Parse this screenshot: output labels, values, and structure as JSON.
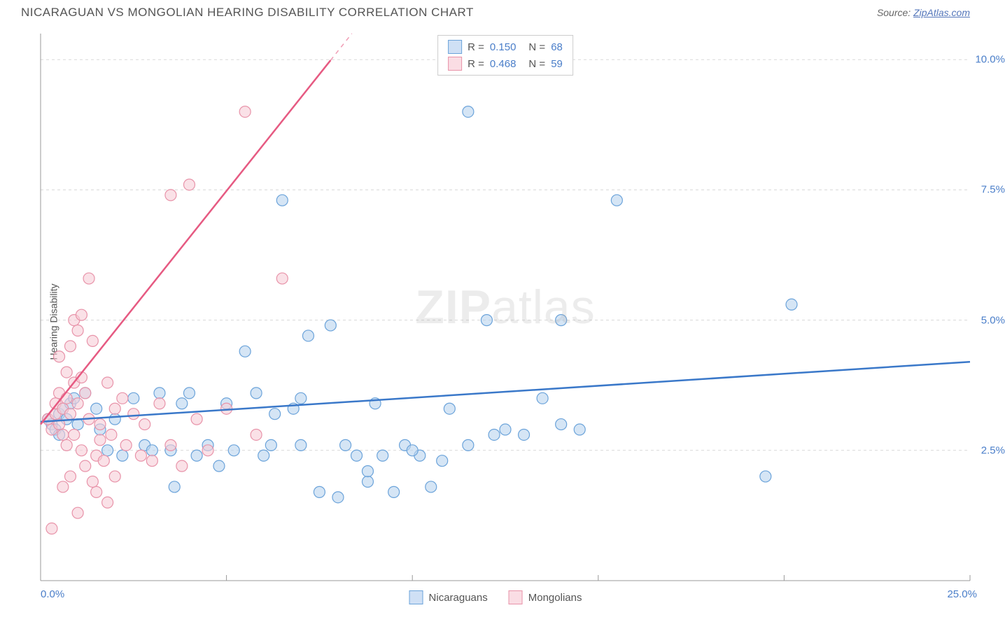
{
  "header": {
    "title": "NICARAGUAN VS MONGOLIAN HEARING DISABILITY CORRELATION CHART",
    "source_prefix": "Source: ",
    "source_link": "ZipAtlas.com"
  },
  "ylabel": "Hearing Disability",
  "watermark_zip": "ZIP",
  "watermark_atlas": "atlas",
  "chart": {
    "type": "scatter",
    "xlim": [
      0,
      25
    ],
    "ylim": [
      0,
      10.5
    ],
    "x_axis_left_label": "0.0%",
    "x_axis_right_label": "25.0%",
    "y_ticks": [
      {
        "v": 2.5,
        "label": "2.5%"
      },
      {
        "v": 5.0,
        "label": "5.0%"
      },
      {
        "v": 7.5,
        "label": "7.5%"
      },
      {
        "v": 10.0,
        "label": "10.0%"
      }
    ],
    "grid_v_lines": [
      5,
      10,
      15,
      20,
      25
    ],
    "grid_color": "#d8d8d8",
    "axis_color": "#999999",
    "background_color": "#ffffff",
    "series": [
      {
        "name": "Nicaraguans",
        "color_fill": "#b9d3ef",
        "color_stroke": "#6ba3da",
        "swatch_fill": "#cfe0f5",
        "swatch_stroke": "#6ba3da",
        "marker_radius": 8,
        "R": "0.150",
        "N": "68",
        "trend": {
          "x1": 0,
          "y1": 3.05,
          "x2": 25,
          "y2": 4.2,
          "solid_until_x": 25,
          "color": "#3a78c9",
          "width": 2.5
        },
        "points": [
          [
            0.2,
            3.1
          ],
          [
            0.3,
            3.0
          ],
          [
            0.4,
            2.9
          ],
          [
            0.5,
            3.2
          ],
          [
            0.5,
            2.8
          ],
          [
            0.6,
            3.3
          ],
          [
            0.7,
            3.1
          ],
          [
            0.8,
            3.4
          ],
          [
            0.9,
            3.5
          ],
          [
            1.0,
            3.0
          ],
          [
            1.2,
            3.6
          ],
          [
            1.5,
            3.3
          ],
          [
            1.6,
            2.9
          ],
          [
            1.8,
            2.5
          ],
          [
            2.0,
            3.1
          ],
          [
            2.2,
            2.4
          ],
          [
            2.5,
            3.5
          ],
          [
            2.8,
            2.6
          ],
          [
            3.0,
            2.5
          ],
          [
            3.2,
            3.6
          ],
          [
            3.5,
            2.5
          ],
          [
            3.8,
            3.4
          ],
          [
            4.0,
            3.6
          ],
          [
            4.2,
            2.4
          ],
          [
            4.5,
            2.6
          ],
          [
            5.0,
            3.4
          ],
          [
            5.2,
            2.5
          ],
          [
            5.5,
            4.4
          ],
          [
            5.8,
            3.6
          ],
          [
            6.0,
            2.4
          ],
          [
            6.2,
            2.6
          ],
          [
            6.5,
            7.3
          ],
          [
            6.8,
            3.3
          ],
          [
            7.0,
            2.6
          ],
          [
            7.2,
            4.7
          ],
          [
            7.5,
            1.7
          ],
          [
            7.8,
            4.9
          ],
          [
            8.0,
            1.6
          ],
          [
            8.2,
            2.6
          ],
          [
            8.5,
            2.4
          ],
          [
            8.8,
            1.9
          ],
          [
            9.0,
            3.4
          ],
          [
            9.2,
            2.4
          ],
          [
            9.5,
            1.7
          ],
          [
            9.8,
            2.6
          ],
          [
            10.2,
            2.4
          ],
          [
            10.5,
            1.8
          ],
          [
            10.8,
            2.3
          ],
          [
            11.0,
            3.3
          ],
          [
            11.5,
            9.0
          ],
          [
            11.5,
            2.6
          ],
          [
            12.0,
            5.0
          ],
          [
            12.2,
            2.8
          ],
          [
            12.5,
            2.9
          ],
          [
            13.0,
            2.8
          ],
          [
            13.5,
            3.5
          ],
          [
            14.0,
            5.0
          ],
          [
            14.0,
            3.0
          ],
          [
            14.5,
            2.9
          ],
          [
            15.5,
            7.3
          ],
          [
            19.5,
            2.0
          ],
          [
            20.2,
            5.3
          ],
          [
            10.0,
            2.5
          ],
          [
            7.0,
            3.5
          ],
          [
            6.3,
            3.2
          ],
          [
            8.8,
            2.1
          ],
          [
            4.8,
            2.2
          ],
          [
            3.6,
            1.8
          ]
        ]
      },
      {
        "name": "Mongolians",
        "color_fill": "#f7cdd7",
        "color_stroke": "#e893a9",
        "swatch_fill": "#fadde4",
        "swatch_stroke": "#e893a9",
        "marker_radius": 8,
        "R": "0.468",
        "N": "59",
        "trend": {
          "x1": 0,
          "y1": 3.0,
          "x2": 24,
          "y2": 24.5,
          "solid_until_x": 7.8,
          "color": "#e65a82",
          "width": 2.5
        },
        "points": [
          [
            0.2,
            3.1
          ],
          [
            0.3,
            2.9
          ],
          [
            0.4,
            3.2
          ],
          [
            0.4,
            3.4
          ],
          [
            0.5,
            3.0
          ],
          [
            0.5,
            3.6
          ],
          [
            0.6,
            2.8
          ],
          [
            0.6,
            3.3
          ],
          [
            0.7,
            3.5
          ],
          [
            0.7,
            2.6
          ],
          [
            0.8,
            4.5
          ],
          [
            0.8,
            3.2
          ],
          [
            0.9,
            5.0
          ],
          [
            0.9,
            2.8
          ],
          [
            1.0,
            4.8
          ],
          [
            1.0,
            3.4
          ],
          [
            1.1,
            5.1
          ],
          [
            1.1,
            2.5
          ],
          [
            1.2,
            3.6
          ],
          [
            1.2,
            2.2
          ],
          [
            1.3,
            5.8
          ],
          [
            1.3,
            3.1
          ],
          [
            1.4,
            4.6
          ],
          [
            1.5,
            2.4
          ],
          [
            1.5,
            1.7
          ],
          [
            1.6,
            3.0
          ],
          [
            1.7,
            2.3
          ],
          [
            1.8,
            1.5
          ],
          [
            1.9,
            2.8
          ],
          [
            2.0,
            3.3
          ],
          [
            2.0,
            2.0
          ],
          [
            2.2,
            3.5
          ],
          [
            2.3,
            2.6
          ],
          [
            2.5,
            3.2
          ],
          [
            2.7,
            2.4
          ],
          [
            2.8,
            3.0
          ],
          [
            3.0,
            2.3
          ],
          [
            3.2,
            3.4
          ],
          [
            3.5,
            2.6
          ],
          [
            3.5,
            7.4
          ],
          [
            3.8,
            2.2
          ],
          [
            4.0,
            7.6
          ],
          [
            4.2,
            3.1
          ],
          [
            4.5,
            2.5
          ],
          [
            5.0,
            3.3
          ],
          [
            5.5,
            9.0
          ],
          [
            5.8,
            2.8
          ],
          [
            6.5,
            5.8
          ],
          [
            0.3,
            1.0
          ],
          [
            1.0,
            1.3
          ],
          [
            0.6,
            1.8
          ],
          [
            0.8,
            2.0
          ],
          [
            1.4,
            1.9
          ],
          [
            1.6,
            2.7
          ],
          [
            1.8,
            3.8
          ],
          [
            0.5,
            4.3
          ],
          [
            0.7,
            4.0
          ],
          [
            0.9,
            3.8
          ],
          [
            1.1,
            3.9
          ]
        ]
      }
    ]
  },
  "legend_bottom": [
    {
      "label": "Nicaraguans",
      "fill": "#cfe0f5",
      "stroke": "#6ba3da"
    },
    {
      "label": "Mongolians",
      "fill": "#fadde4",
      "stroke": "#e893a9"
    }
  ]
}
